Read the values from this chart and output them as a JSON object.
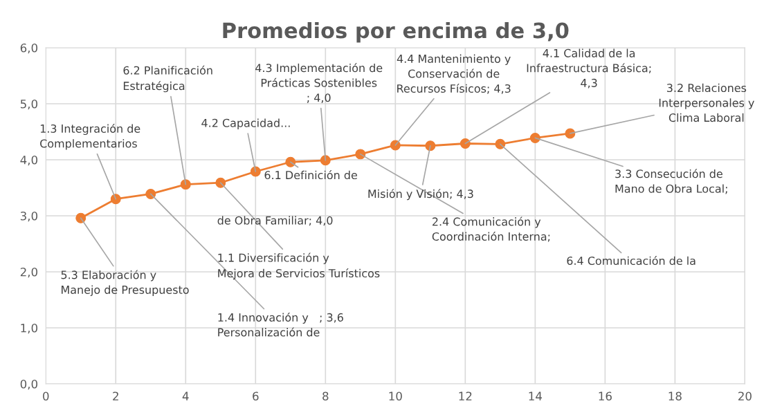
{
  "chart_data": {
    "type": "line",
    "title": "Promedios por encima de 3,0",
    "x": [
      1,
      2,
      3,
      4,
      5,
      6,
      7,
      8,
      9,
      10,
      11,
      12,
      13,
      14,
      15
    ],
    "series": [
      {
        "color": "#ed7d31",
        "values": [
          2.96,
          3.3,
          3.39,
          3.56,
          3.59,
          3.79,
          3.96,
          3.99,
          4.1,
          4.26,
          4.25,
          4.29,
          4.28,
          4.39,
          4.47
        ]
      }
    ],
    "xlim": [
      0,
      20
    ],
    "xticks": [
      0,
      2,
      4,
      6,
      8,
      10,
      12,
      14,
      16,
      18,
      20
    ],
    "ylim": [
      0,
      6
    ],
    "yticks": [
      {
        "value": 0,
        "label": "0,0"
      },
      {
        "value": 1,
        "label": "1,0"
      },
      {
        "value": 2,
        "label": "2,0"
      },
      {
        "value": 3,
        "label": "3,0"
      },
      {
        "value": 4,
        "label": "4,0"
      },
      {
        "value": 5,
        "label": "5,0"
      },
      {
        "value": 6,
        "label": "6,0"
      }
    ],
    "grid": true,
    "marker": "circle",
    "line_style": "solid",
    "annotations": [
      {
        "text": "5.3 Elaboración y\nManejo de Presupuesto",
        "x": 1,
        "y": 2.96
      },
      {
        "text": "1.3 Integración de\nComplementarios",
        "x": 2,
        "y": 3.3
      },
      {
        "text": "1.4 Innovación y   ; 3,6\nPersonalización de",
        "x": 3,
        "y": 3.39
      },
      {
        "text": "6.2 Planificación\nEstratégica",
        "x": 4,
        "y": 3.56
      },
      {
        "text": "1.1 Diversificación y\nMejora de Servicios Turísticos",
        "x": 5,
        "y": 3.59
      },
      {
        "text": "4.2 Capacidad...",
        "x": 6,
        "y": 3.79
      },
      {
        "text": "6.1 Definición de",
        "x": 7,
        "y": 3.96
      },
      "de Obra Familiar; 4,0",
      {
        "text": "4.3 Implementación de\nPrácticas Sostenibles\n; 4,0",
        "x": 8,
        "y": 3.99
      },
      {
        "text": "4.4 Mantenimiento y\nConservación de\nRecursos Físicos; 4,3",
        "x": 10,
        "y": 4.26
      },
      {
        "text": "4.1 Calidad de la\nInfraestructura Básica;\n4,3",
        "x": 12,
        "y": 4.29
      },
      {
        "text": "3.2 Relaciones\nInterpersonales y\nClima Laboral",
        "x": 15,
        "y": 4.47
      },
      {
        "text": "3.3 Consecución de\nMano de Obra Local;",
        "x": 14,
        "y": 4.39
      },
      {
        "text": "6.4 Comunicación de la",
        "x": 13,
        "y": 4.28
      },
      {
        "text": "2.4 Comunicación y\nCoordinación Interna;",
        "x": 9,
        "y": 4.1
      },
      {
        "text": "Misión y Visión; 4,3",
        "x": 11,
        "y": 4.25
      }
    ]
  }
}
